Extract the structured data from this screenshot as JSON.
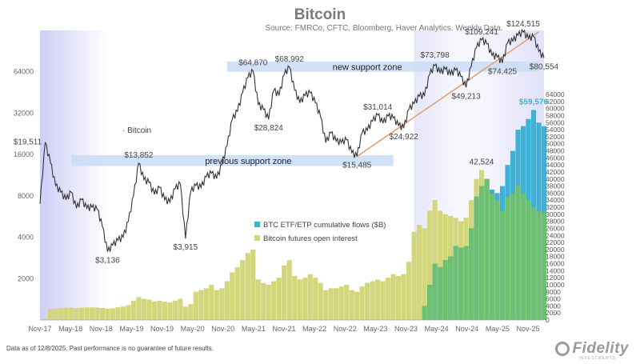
{
  "chart_data": {
    "type": "line",
    "title": "Bitcoin",
    "subtitle": "Source: FMRCo, CFTC, Bloomberg, Haver Analytics. Weekly Data.",
    "x_tick_labels": [
      "Nov-17",
      "May-18",
      "Nov-18",
      "May-19",
      "Nov-19",
      "May-20",
      "Nov-20",
      "May-21",
      "Nov-21",
      "May-22",
      "Nov-22",
      "May-23",
      "Nov-23",
      "May-24",
      "Nov-24",
      "May-25",
      "Nov-25"
    ],
    "x_range": [
      "2017-11",
      "2025-12"
    ],
    "left_axis": {
      "scale": "log2",
      "ticks": [
        2000,
        4000,
        8000,
        16000,
        32000,
        64000
      ],
      "range": [
        1000,
        128000
      ]
    },
    "right_axis": {
      "scale": "linear",
      "ticks": [
        0,
        2000,
        4000,
        6000,
        8000,
        10000,
        12000,
        14000,
        16000,
        18000,
        20000,
        22000,
        24000,
        26000,
        28000,
        30000,
        32000,
        34000,
        36000,
        38000,
        40000,
        42000,
        44000,
        46000,
        48000,
        50000,
        52000,
        54000,
        56000,
        58000,
        60000,
        62000,
        64000
      ],
      "range": [
        0,
        64000
      ]
    },
    "series": [
      {
        "name": "Bitcoin",
        "color": "#333333",
        "axis": "left",
        "points": [
          [
            "2017-11",
            7000
          ],
          [
            "2017-12",
            19511
          ],
          [
            "2018-01",
            14000
          ],
          [
            "2018-02",
            9500
          ],
          [
            "2018-03",
            8500
          ],
          [
            "2018-04",
            7500
          ],
          [
            "2018-05",
            8500
          ],
          [
            "2018-06",
            6500
          ],
          [
            "2018-07",
            7500
          ],
          [
            "2018-08",
            6500
          ],
          [
            "2018-09",
            6600
          ],
          [
            "2018-10",
            6400
          ],
          [
            "2018-11",
            4800
          ],
          [
            "2018-12",
            3136
          ],
          [
            "2019-01",
            3500
          ],
          [
            "2019-02",
            3800
          ],
          [
            "2019-03",
            4000
          ],
          [
            "2019-04",
            5200
          ],
          [
            "2019-05",
            8000
          ],
          [
            "2019-06",
            13852
          ],
          [
            "2019-07",
            10500
          ],
          [
            "2019-08",
            10000
          ],
          [
            "2019-09",
            8200
          ],
          [
            "2019-10",
            9200
          ],
          [
            "2019-11",
            7500
          ],
          [
            "2019-12",
            7200
          ],
          [
            "2020-01",
            9000
          ],
          [
            "2020-02",
            9800
          ],
          [
            "2020-03",
            3915
          ],
          [
            "2020-04",
            8600
          ],
          [
            "2020-05",
            9500
          ],
          [
            "2020-06",
            9200
          ],
          [
            "2020-07",
            11000
          ],
          [
            "2020-08",
            11700
          ],
          [
            "2020-09",
            10700
          ],
          [
            "2020-10",
            13500
          ],
          [
            "2020-11",
            18500
          ],
          [
            "2020-12",
            28800
          ],
          [
            "2021-01",
            33000
          ],
          [
            "2021-02",
            45000
          ],
          [
            "2021-03",
            58000
          ],
          [
            "2021-04",
            64870
          ],
          [
            "2021-05",
            37000
          ],
          [
            "2021-06",
            34000
          ],
          [
            "2021-07",
            28824
          ],
          [
            "2021-08",
            47000
          ],
          [
            "2021-09",
            43000
          ],
          [
            "2021-10",
            61000
          ],
          [
            "2021-11",
            68992
          ],
          [
            "2021-12",
            47000
          ],
          [
            "2022-01",
            38000
          ],
          [
            "2022-02",
            43000
          ],
          [
            "2022-03",
            45000
          ],
          [
            "2022-04",
            38000
          ],
          [
            "2022-05",
            30000
          ],
          [
            "2022-06",
            19500
          ],
          [
            "2022-07",
            23000
          ],
          [
            "2022-08",
            20000
          ],
          [
            "2022-09",
            19500
          ],
          [
            "2022-10",
            20500
          ],
          [
            "2022-11",
            16500
          ],
          [
            "2022-12",
            15485
          ],
          [
            "2023-01",
            23000
          ],
          [
            "2023-02",
            24000
          ],
          [
            "2023-03",
            28000
          ],
          [
            "2023-04",
            31014
          ],
          [
            "2023-05",
            27000
          ],
          [
            "2023-06",
            30500
          ],
          [
            "2023-07",
            29500
          ],
          [
            "2023-08",
            26000
          ],
          [
            "2023-09",
            24922
          ],
          [
            "2023-10",
            34000
          ],
          [
            "2023-11",
            37500
          ],
          [
            "2023-12",
            42500
          ],
          [
            "2024-01",
            43000
          ],
          [
            "2024-02",
            61000
          ],
          [
            "2024-03",
            71000
          ],
          [
            "2024-04",
            63000
          ],
          [
            "2024-05",
            67000
          ],
          [
            "2024-06",
            61000
          ],
          [
            "2024-07",
            66000
          ],
          [
            "2024-08",
            59000
          ],
          [
            "2024-09",
            49213
          ],
          [
            "2024-10",
            70000
          ],
          [
            "2024-11",
            96000
          ],
          [
            "2024-12",
            109241
          ],
          [
            "2025-01",
            102000
          ],
          [
            "2025-02",
            84000
          ],
          [
            "2025-03",
            82000
          ],
          [
            "2025-04",
            74425
          ],
          [
            "2025-05",
            104000
          ],
          [
            "2025-06",
            107000
          ],
          [
            "2025-07",
            118000
          ],
          [
            "2025-08",
            124515
          ],
          [
            "2025-09",
            112000
          ],
          [
            "2025-10",
            115000
          ],
          [
            "2025-11",
            90000
          ],
          [
            "2025-12",
            80554
          ]
        ]
      },
      {
        "name": "BTC ETF/ETP cumulative flows ($B)",
        "color": "#3fb0d6",
        "axis": "right",
        "points": [
          [
            "2023-12",
            0
          ],
          [
            "2024-01",
            4000
          ],
          [
            "2024-02",
            10000
          ],
          [
            "2024-03",
            16000
          ],
          [
            "2024-04",
            15000
          ],
          [
            "2024-05",
            17000
          ],
          [
            "2024-06",
            18000
          ],
          [
            "2024-07",
            21000
          ],
          [
            "2024-08",
            20500
          ],
          [
            "2024-09",
            21000
          ],
          [
            "2024-10",
            26000
          ],
          [
            "2024-11",
            35000
          ],
          [
            "2024-12",
            38000
          ],
          [
            "2025-01",
            40000
          ],
          [
            "2025-02",
            37000
          ],
          [
            "2025-03",
            36000
          ],
          [
            "2025-04",
            38000
          ],
          [
            "2025-05",
            44000
          ],
          [
            "2025-06",
            48000
          ],
          [
            "2025-07",
            54000
          ],
          [
            "2025-08",
            55000
          ],
          [
            "2025-09",
            57000
          ],
          [
            "2025-10",
            59576
          ],
          [
            "2025-11",
            56000
          ],
          [
            "2025-12",
            55000
          ]
        ]
      },
      {
        "name": "Bitcoin futures open interest",
        "color": "#d3d67a",
        "axis": "right",
        "points": [
          [
            "2017-12",
            300
          ],
          [
            "2018-01",
            3000
          ],
          [
            "2018-02",
            3200
          ],
          [
            "2018-03",
            3400
          ],
          [
            "2018-04",
            3500
          ],
          [
            "2018-05",
            3500
          ],
          [
            "2018-06",
            3400
          ],
          [
            "2018-07",
            3500
          ],
          [
            "2018-08",
            3600
          ],
          [
            "2018-09",
            3600
          ],
          [
            "2018-10",
            3500
          ],
          [
            "2018-11",
            3400
          ],
          [
            "2018-12",
            3200
          ],
          [
            "2019-01",
            3300
          ],
          [
            "2019-02",
            3600
          ],
          [
            "2019-03",
            3800
          ],
          [
            "2019-04",
            4200
          ],
          [
            "2019-05",
            5500
          ],
          [
            "2019-06",
            6500
          ],
          [
            "2019-07",
            6000
          ],
          [
            "2019-08",
            5800
          ],
          [
            "2019-09",
            5300
          ],
          [
            "2019-10",
            5500
          ],
          [
            "2019-11",
            5200
          ],
          [
            "2019-12",
            5000
          ],
          [
            "2020-01",
            5500
          ],
          [
            "2020-02",
            6000
          ],
          [
            "2020-03",
            3800
          ],
          [
            "2020-04",
            4500
          ],
          [
            "2020-05",
            8000
          ],
          [
            "2020-06",
            8500
          ],
          [
            "2020-07",
            9000
          ],
          [
            "2020-08",
            10000
          ],
          [
            "2020-09",
            8500
          ],
          [
            "2020-10",
            9000
          ],
          [
            "2020-11",
            11000
          ],
          [
            "2020-12",
            13500
          ],
          [
            "2021-01",
            15000
          ],
          [
            "2021-02",
            17000
          ],
          [
            "2021-03",
            19000
          ],
          [
            "2021-04",
            20000
          ],
          [
            "2021-05",
            11500
          ],
          [
            "2021-06",
            10500
          ],
          [
            "2021-07",
            10000
          ],
          [
            "2021-08",
            11000
          ],
          [
            "2021-09",
            12000
          ],
          [
            "2021-10",
            15500
          ],
          [
            "2021-11",
            17000
          ],
          [
            "2021-12",
            12500
          ],
          [
            "2022-01",
            11500
          ],
          [
            "2022-02",
            12000
          ],
          [
            "2022-03",
            13000
          ],
          [
            "2022-04",
            12000
          ],
          [
            "2022-05",
            10500
          ],
          [
            "2022-06",
            8500
          ],
          [
            "2022-07",
            9000
          ],
          [
            "2022-08",
            9000
          ],
          [
            "2022-09",
            9500
          ],
          [
            "2022-10",
            10000
          ],
          [
            "2022-11",
            8500
          ],
          [
            "2022-12",
            8000
          ],
          [
            "2023-01",
            9500
          ],
          [
            "2023-02",
            10500
          ],
          [
            "2023-03",
            11000
          ],
          [
            "2023-04",
            11500
          ],
          [
            "2023-05",
            11000
          ],
          [
            "2023-06",
            12000
          ],
          [
            "2023-07",
            13000
          ],
          [
            "2023-08",
            12500
          ],
          [
            "2023-09",
            13000
          ],
          [
            "2023-10",
            16500
          ],
          [
            "2023-11",
            25000
          ],
          [
            "2023-12",
            27000
          ],
          [
            "2024-01",
            26000
          ],
          [
            "2024-02",
            31000
          ],
          [
            "2024-03",
            34000
          ],
          [
            "2024-04",
            31000
          ],
          [
            "2024-05",
            30000
          ],
          [
            "2024-06",
            29500
          ],
          [
            "2024-07",
            29000
          ],
          [
            "2024-08",
            28000
          ],
          [
            "2024-09",
            29000
          ],
          [
            "2024-10",
            34000
          ],
          [
            "2024-11",
            40000
          ],
          [
            "2024-12",
            42524
          ],
          [
            "2025-01",
            40000
          ],
          [
            "2025-02",
            36000
          ],
          [
            "2025-03",
            34000
          ],
          [
            "2025-04",
            31000
          ],
          [
            "2025-05",
            35000
          ],
          [
            "2025-06",
            36000
          ],
          [
            "2025-07",
            38000
          ],
          [
            "2025-08",
            36000
          ],
          [
            "2025-09",
            34000
          ],
          [
            "2025-10",
            32000
          ],
          [
            "2025-11",
            31000
          ],
          [
            "2025-12",
            30500
          ]
        ]
      }
    ],
    "support_zones": [
      {
        "label": "previous support zone",
        "from": "2018-05",
        "to": "2023-07",
        "low": 13200,
        "high": 15800
      },
      {
        "label": "new support zone",
        "from": "2020-11",
        "to": "2025-11",
        "low": 64000,
        "high": 76000
      }
    ],
    "trendline": {
      "from": [
        "2022-12",
        15485
      ],
      "to": [
        "2025-11",
        125000
      ],
      "color": "#e8a070"
    },
    "annotations": [
      {
        "text": "$19,511",
        "x": "2017-12",
        "y": 19511,
        "anchor": "right"
      },
      {
        "text": "$3,136",
        "x": "2018-12",
        "y": 3136,
        "anchor": "below"
      },
      {
        "text": "$13,852",
        "x": "2019-06",
        "y": 13852,
        "anchor": "above"
      },
      {
        "text": "$3,915",
        "x": "2020-03",
        "y": 3915,
        "anchor": "below"
      },
      {
        "text": "$64,870",
        "x": "2021-04",
        "y": 64870,
        "anchor": "above"
      },
      {
        "text": "$28,824",
        "x": "2021-07",
        "y": 28824,
        "anchor": "below"
      },
      {
        "text": "$68,992",
        "x": "2021-11",
        "y": 68992,
        "anchor": "above"
      },
      {
        "text": "$15,485",
        "x": "2022-12",
        "y": 15485,
        "anchor": "below"
      },
      {
        "text": "$31,014",
        "x": "2023-04",
        "y": 31014,
        "anchor": "above"
      },
      {
        "text": "$24,922",
        "x": "2023-09",
        "y": 24922,
        "anchor": "below"
      },
      {
        "text": "$73,798",
        "x": "2024-03",
        "y": 73798,
        "anchor": "above"
      },
      {
        "text": "$49,213",
        "x": "2024-09",
        "y": 49213,
        "anchor": "below"
      },
      {
        "text": "$109,241",
        "x": "2024-12",
        "y": 109241,
        "anchor": "above"
      },
      {
        "text": "$74,425",
        "x": "2025-04",
        "y": 74425,
        "anchor": "below"
      },
      {
        "text": "$124,515",
        "x": "2025-08",
        "y": 124515,
        "anchor": "above"
      },
      {
        "text": "$80,554",
        "x": "2025-12",
        "y": 80554,
        "anchor": "below"
      },
      {
        "text": "42,524",
        "x": "2024-12",
        "y": 42524,
        "anchor": "above",
        "axis": "right"
      },
      {
        "text": "$59,576",
        "x": "2025-10",
        "y": 59576,
        "anchor": "above",
        "axis": "right",
        "color": "#3fb0d6"
      }
    ],
    "legend": {
      "placement": "center"
    },
    "grid": false,
    "inline_series_label": "Bitcoin"
  },
  "footnote": "Data as of 12/8/2025. Past performance is no guarantee of future results.",
  "logo_text": "Fidelity",
  "logo_sub": "INVESTMENTS"
}
